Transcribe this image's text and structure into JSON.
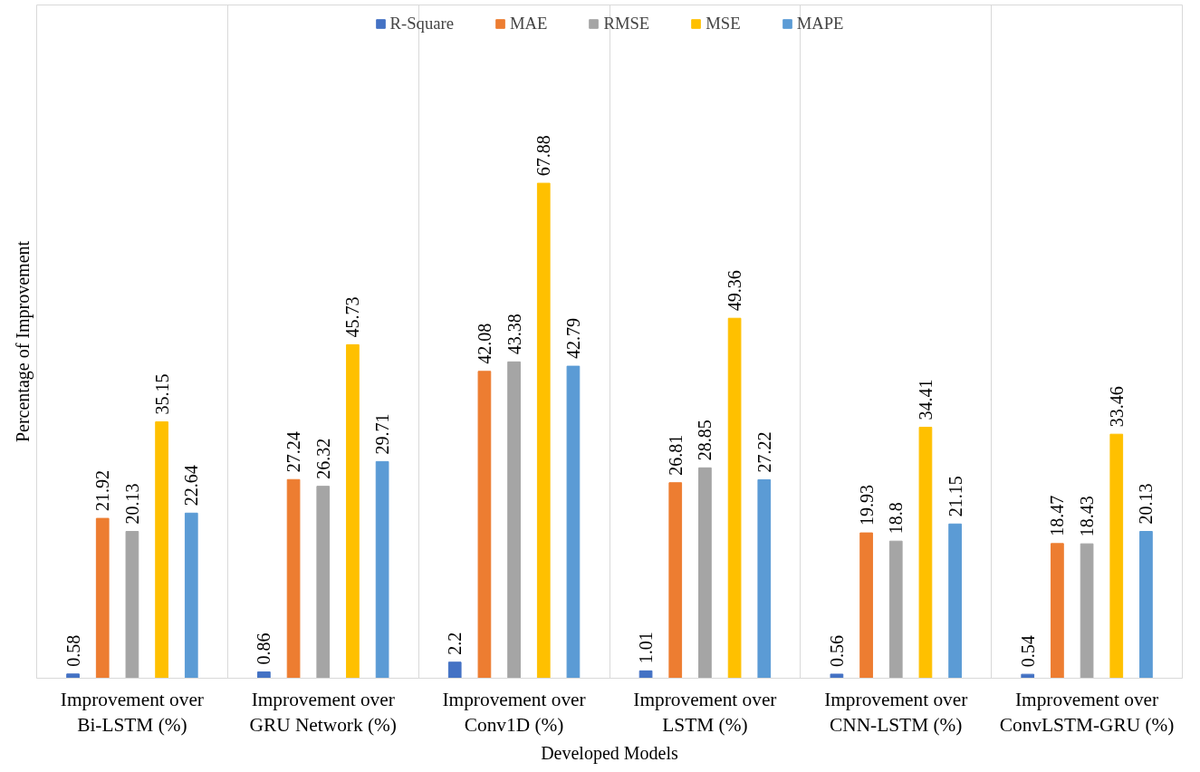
{
  "chart_data": {
    "type": "bar",
    "xlabel": "Developed Models",
    "ylabel": "Percentage of Improvement",
    "categories": [
      "Improvement over Bi-LSTM (%)",
      "Improvement over GRU Network (%)",
      "Improvement over Conv1D (%)",
      "Improvement over LSTM (%)",
      "Improvement over CNN-LSTM (%)",
      "Improvement over ConvLSTM-GRU (%)"
    ],
    "series": [
      {
        "name": "R-Square",
        "color": "#4472c4",
        "values": [
          0.58,
          0.86,
          2.2,
          1.01,
          0.56,
          0.54
        ]
      },
      {
        "name": "MAE",
        "color": "#ed7d31",
        "values": [
          21.92,
          27.24,
          42.08,
          26.81,
          19.93,
          18.47
        ]
      },
      {
        "name": "RMSE",
        "color": "#a5a5a5",
        "values": [
          20.13,
          26.32,
          43.38,
          28.85,
          18.8,
          18.43
        ]
      },
      {
        "name": "MSE",
        "color": "#ffc000",
        "values": [
          35.15,
          45.73,
          67.88,
          49.36,
          34.41,
          33.46
        ]
      },
      {
        "name": "MAPE",
        "color": "#5b9bd5",
        "values": [
          22.64,
          29.71,
          42.79,
          27.22,
          21.15,
          20.13
        ]
      }
    ],
    "data_labels": true,
    "grid": "x",
    "legend": "top",
    "tick_labels": "x"
  }
}
